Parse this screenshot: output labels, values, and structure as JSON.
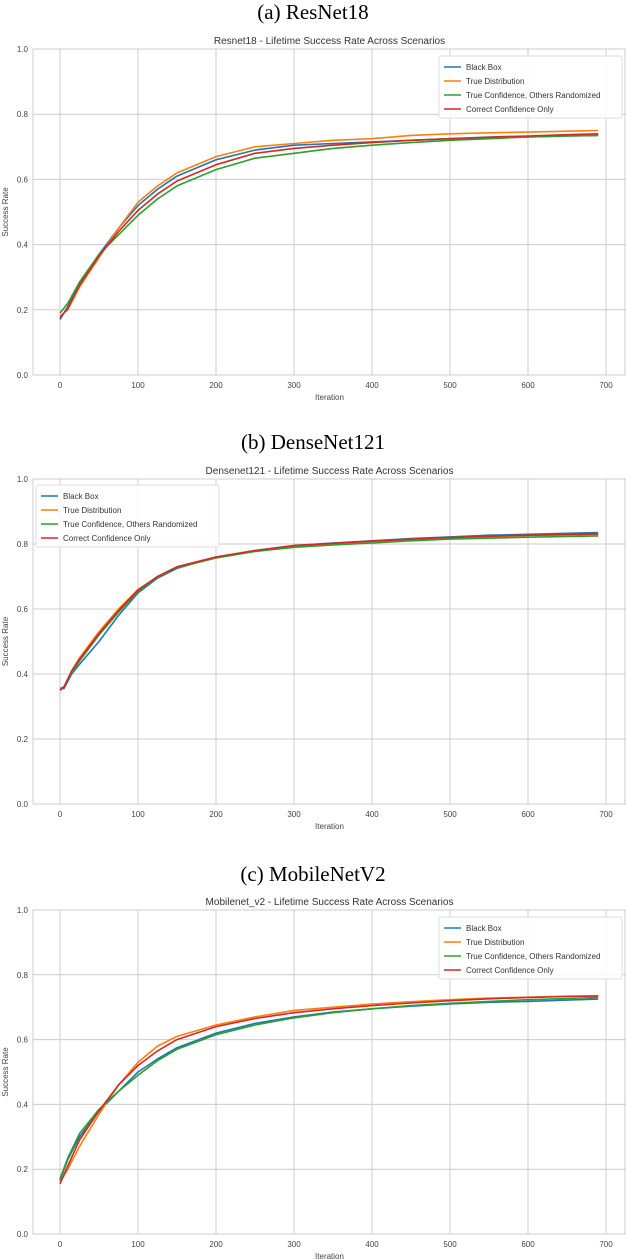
{
  "captions": [
    "(a) ResNet18",
    "(b) DenseNet121",
    "(c) MobileNetV2"
  ],
  "colors": {
    "Black Box": "#1f77b4",
    "True Distribution": "#ff7f0e",
    "True Confidence, Others Randomized": "#2ca02c",
    "Correct Confidence Only": "#d62728",
    "grid": "#cccccc",
    "background": "#ffffff"
  },
  "chart_data": [
    {
      "type": "line",
      "caption": "(a) ResNet18",
      "title": "Resnet18 - Lifetime Success Rate Across Scenarios",
      "xlabel": "Iteration",
      "ylabel": "Success Rate",
      "xlim": [
        -35,
        725
      ],
      "ylim": [
        0.0,
        1.0
      ],
      "xticks": [
        0,
        100,
        200,
        300,
        400,
        500,
        600,
        700
      ],
      "yticks": [
        0.0,
        0.2,
        0.4,
        0.6,
        0.8,
        1.0
      ],
      "grid": true,
      "legend_position": "upper right",
      "x": [
        0,
        10,
        25,
        50,
        75,
        100,
        125,
        150,
        200,
        250,
        300,
        350,
        400,
        450,
        500,
        550,
        600,
        650,
        690
      ],
      "series": [
        {
          "name": "Black Box",
          "values": [
            0.17,
            0.21,
            0.28,
            0.37,
            0.45,
            0.52,
            0.57,
            0.61,
            0.66,
            0.69,
            0.705,
            0.71,
            0.715,
            0.72,
            0.725,
            0.728,
            0.73,
            0.733,
            0.735
          ]
        },
        {
          "name": "True Distribution",
          "values": [
            0.18,
            0.2,
            0.27,
            0.36,
            0.45,
            0.53,
            0.58,
            0.62,
            0.67,
            0.7,
            0.71,
            0.72,
            0.725,
            0.735,
            0.74,
            0.743,
            0.745,
            0.748,
            0.75
          ]
        },
        {
          "name": "True Confidence, Others Randomized",
          "values": [
            0.19,
            0.22,
            0.285,
            0.37,
            0.43,
            0.49,
            0.54,
            0.58,
            0.63,
            0.665,
            0.68,
            0.695,
            0.705,
            0.713,
            0.72,
            0.725,
            0.73,
            0.733,
            0.735
          ]
        },
        {
          "name": "Correct Confidence Only",
          "values": [
            0.175,
            0.205,
            0.275,
            0.365,
            0.44,
            0.505,
            0.555,
            0.595,
            0.645,
            0.68,
            0.695,
            0.705,
            0.713,
            0.72,
            0.725,
            0.73,
            0.733,
            0.737,
            0.74
          ]
        }
      ]
    },
    {
      "type": "line",
      "caption": "(b) DenseNet121",
      "title": "Densenet121 - Lifetime Success Rate Across Scenarios",
      "xlabel": "Iteration",
      "ylabel": "Success Rate",
      "xlim": [
        -35,
        725
      ],
      "ylim": [
        0.0,
        1.0
      ],
      "xticks": [
        0,
        100,
        200,
        300,
        400,
        500,
        600,
        700
      ],
      "yticks": [
        0.0,
        0.2,
        0.4,
        0.6,
        0.8,
        1.0
      ],
      "grid": true,
      "legend_position": "upper left",
      "x": [
        0,
        5,
        15,
        25,
        50,
        75,
        100,
        125,
        150,
        200,
        250,
        300,
        350,
        400,
        450,
        500,
        550,
        600,
        650,
        690
      ],
      "series": [
        {
          "name": "Black Box",
          "values": [
            0.355,
            0.355,
            0.4,
            0.43,
            0.5,
            0.58,
            0.65,
            0.695,
            0.725,
            0.76,
            0.78,
            0.795,
            0.803,
            0.81,
            0.817,
            0.822,
            0.827,
            0.83,
            0.833,
            0.835
          ]
        },
        {
          "name": "True Distribution",
          "values": [
            0.35,
            0.36,
            0.41,
            0.45,
            0.53,
            0.6,
            0.66,
            0.7,
            0.73,
            0.76,
            0.78,
            0.793,
            0.8,
            0.807,
            0.813,
            0.818,
            0.822,
            0.826,
            0.828,
            0.83
          ]
        },
        {
          "name": "True Confidence, Others Randomized",
          "values": [
            0.355,
            0.36,
            0.405,
            0.44,
            0.52,
            0.59,
            0.655,
            0.698,
            0.727,
            0.757,
            0.777,
            0.79,
            0.797,
            0.803,
            0.81,
            0.815,
            0.818,
            0.821,
            0.823,
            0.825
          ]
        },
        {
          "name": "Correct Confidence Only",
          "values": [
            0.35,
            0.36,
            0.41,
            0.445,
            0.525,
            0.595,
            0.658,
            0.7,
            0.73,
            0.76,
            0.78,
            0.795,
            0.802,
            0.809,
            0.815,
            0.82,
            0.824,
            0.827,
            0.829,
            0.831
          ]
        }
      ]
    },
    {
      "type": "line",
      "caption": "(c) MobileNetV2",
      "title": "Mobilenet_v2 - Lifetime Success Rate Across Scenarios",
      "xlabel": "Iteration",
      "ylabel": "Success Rate",
      "xlim": [
        -35,
        725
      ],
      "ylim": [
        0.0,
        1.0
      ],
      "xticks": [
        0,
        100,
        200,
        300,
        400,
        500,
        600,
        700
      ],
      "yticks": [
        0.0,
        0.2,
        0.4,
        0.6,
        0.8,
        1.0
      ],
      "grid": true,
      "legend_position": "upper right",
      "x": [
        0,
        10,
        25,
        50,
        75,
        100,
        125,
        150,
        200,
        250,
        300,
        350,
        400,
        450,
        500,
        550,
        600,
        650,
        690
      ],
      "series": [
        {
          "name": "Black Box",
          "values": [
            0.165,
            0.23,
            0.3,
            0.38,
            0.44,
            0.5,
            0.54,
            0.575,
            0.62,
            0.65,
            0.67,
            0.685,
            0.695,
            0.703,
            0.71,
            0.715,
            0.718,
            0.722,
            0.725
          ]
        },
        {
          "name": "True Distribution",
          "values": [
            0.16,
            0.2,
            0.27,
            0.37,
            0.46,
            0.53,
            0.58,
            0.61,
            0.645,
            0.67,
            0.69,
            0.7,
            0.71,
            0.717,
            0.723,
            0.728,
            0.731,
            0.734,
            0.735
          ]
        },
        {
          "name": "True Confidence, Others Randomized",
          "values": [
            0.17,
            0.235,
            0.31,
            0.385,
            0.44,
            0.49,
            0.535,
            0.57,
            0.615,
            0.645,
            0.667,
            0.683,
            0.695,
            0.705,
            0.712,
            0.718,
            0.723,
            0.727,
            0.73
          ]
        },
        {
          "name": "Correct Confidence Only",
          "values": [
            0.155,
            0.21,
            0.29,
            0.38,
            0.46,
            0.52,
            0.565,
            0.6,
            0.64,
            0.665,
            0.683,
            0.695,
            0.705,
            0.713,
            0.72,
            0.726,
            0.73,
            0.733,
            0.735
          ]
        }
      ]
    }
  ],
  "legend_entries": [
    "Black Box",
    "True Distribution",
    "True Confidence, Others Randomized",
    "Correct Confidence Only"
  ]
}
